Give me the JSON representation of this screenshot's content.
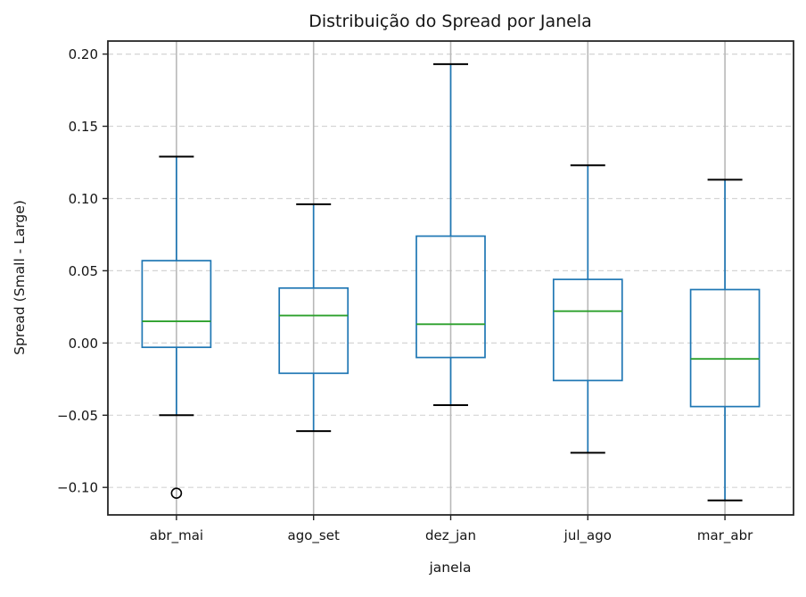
{
  "chart_data": {
    "type": "boxplot",
    "title": "Distribuição do Spread por Janela",
    "xlabel": "janela",
    "ylabel": "Spread (Small - Large)",
    "categories": [
      "abr_mai",
      "ago_set",
      "dez_jan",
      "jul_ago",
      "mar_abr"
    ],
    "series": [
      {
        "name": "abr_mai",
        "whisker_low": -0.05,
        "q1": -0.003,
        "median": 0.015,
        "q3": 0.057,
        "whisker_high": 0.129,
        "outliers": [
          -0.104
        ]
      },
      {
        "name": "ago_set",
        "whisker_low": -0.061,
        "q1": -0.021,
        "median": 0.019,
        "q3": 0.038,
        "whisker_high": 0.096,
        "outliers": []
      },
      {
        "name": "dez_jan",
        "whisker_low": -0.043,
        "q1": -0.01,
        "median": 0.013,
        "q3": 0.074,
        "whisker_high": 0.193,
        "outliers": []
      },
      {
        "name": "jul_ago",
        "whisker_low": -0.076,
        "q1": -0.026,
        "median": 0.022,
        "q3": 0.044,
        "whisker_high": 0.123,
        "outliers": []
      },
      {
        "name": "mar_abr",
        "whisker_low": -0.109,
        "q1": -0.044,
        "median": -0.011,
        "q3": 0.037,
        "whisker_high": 0.113,
        "outliers": []
      }
    ],
    "y_ticks": [
      0.2,
      0.15,
      0.1,
      0.05,
      0.0,
      -0.05,
      -0.1
    ],
    "y_tick_labels": [
      "0.20",
      "0.15",
      "0.10",
      "0.05",
      "0.00",
      "−0.05",
      "−0.10"
    ],
    "ylim": [
      -0.119,
      0.209
    ],
    "grid": {
      "y_style": "dashed",
      "x_style": "solid",
      "visible": true
    },
    "legend": "none",
    "colors": {
      "box": "#1f77b4",
      "whisker": "#1f77b4",
      "median": "#2ca02c",
      "cap": "#000000",
      "outlier": "#000000",
      "grid_y": "#d5d5d5",
      "grid_x": "#b8b8b8",
      "spine": "#262626",
      "tick": "#262626",
      "background": "#ffffff"
    }
  }
}
